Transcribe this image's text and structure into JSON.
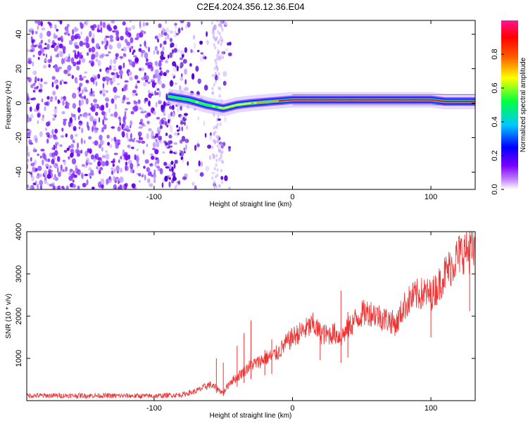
{
  "title": "C2E4.2024.356.12.36.E04",
  "chart_data": [
    {
      "type": "heatmap",
      "xlabel": "Height of straight line (km)",
      "ylabel": "Frequency (Hz)",
      "xlim": [
        -192,
        132
      ],
      "ylim": [
        -50,
        48
      ],
      "xticks": [
        -100,
        0,
        100
      ],
      "yticks": [
        -40,
        -20,
        0,
        20,
        40
      ],
      "colorbar": {
        "label": "Normalized spectral amplitude",
        "range": [
          0.0,
          1.0
        ],
        "ticks": [
          0.0,
          0.2,
          0.4,
          0.6,
          0.8
        ],
        "colors": [
          "#ffffff",
          "#7a00ff",
          "#0000ff",
          "#00c8ff",
          "#00ff40",
          "#ffff00",
          "#ff6000",
          "#ff0000",
          "#ff1493"
        ]
      },
      "ridge": {
        "description_points": [
          [
            -90,
            4
          ],
          [
            -75,
            2
          ],
          [
            -62,
            -1
          ],
          [
            -50,
            -3
          ],
          [
            -40,
            -1
          ],
          [
            -30,
            0
          ],
          [
            -15,
            1
          ],
          [
            0,
            2
          ],
          [
            50,
            2
          ],
          [
            100,
            2
          ],
          [
            110,
            1
          ],
          [
            132,
            1
          ]
        ],
        "amplitude": [
          [
            -90,
            0.45
          ],
          [
            -60,
            0.5
          ],
          [
            -40,
            0.6
          ],
          [
            -20,
            0.75
          ],
          [
            0,
            0.95
          ],
          [
            130,
            0.95
          ]
        ]
      },
      "noise_extent": [
        -192,
        -75
      ]
    },
    {
      "type": "line",
      "xlabel": "Height of straight line (km)",
      "ylabel": "SNR (10 * v/v)",
      "xlim": [
        -192,
        132
      ],
      "ylim": [
        0,
        4000
      ],
      "xticks": [
        -100,
        0,
        100
      ],
      "yticks": [
        1000,
        2000,
        3000,
        4000
      ],
      "color": "#ee3333",
      "series": [
        {
          "values_x": [
            -192,
            -150,
            -100,
            -80,
            -70,
            -60,
            -55,
            -50,
            -45,
            -40,
            -35,
            -30,
            -25,
            -20,
            -15,
            -10,
            -5,
            0,
            5,
            10,
            15,
            20,
            25,
            30,
            35,
            40,
            45,
            50,
            55,
            60,
            65,
            70,
            75,
            80,
            85,
            90,
            95,
            100,
            105,
            110,
            115,
            120,
            125,
            132
          ],
          "values_y": [
            120,
            120,
            110,
            140,
            220,
            380,
            300,
            180,
            450,
            550,
            700,
            850,
            900,
            1000,
            1050,
            1150,
            1350,
            1500,
            1600,
            1700,
            1800,
            1600,
            1550,
            1600,
            1500,
            1700,
            1900,
            2050,
            2100,
            2050,
            1950,
            1900,
            1800,
            2200,
            2400,
            2500,
            2550,
            2500,
            2700,
            3000,
            3200,
            3450,
            3550,
            3500
          ]
        }
      ],
      "spikes": [
        [
          -55,
          1000
        ],
        [
          -50,
          900
        ],
        [
          -40,
          1300
        ],
        [
          -35,
          1600
        ],
        [
          -30,
          1900
        ],
        [
          -20,
          1200
        ],
        [
          -15,
          1450
        ],
        [
          20,
          1800
        ],
        [
          35,
          2600
        ],
        [
          40,
          2100
        ],
        [
          100,
          2650
        ],
        [
          128,
          4000
        ]
      ]
    }
  ]
}
